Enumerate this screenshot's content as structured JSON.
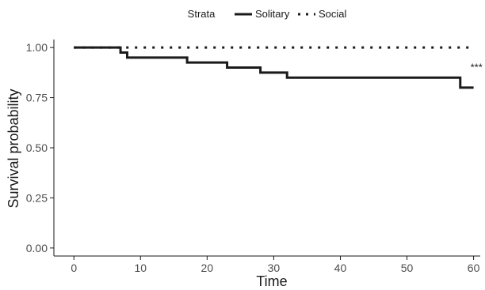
{
  "chart_data": {
    "type": "line",
    "subtype": "kaplan-meier step",
    "title": "",
    "xlabel": "Time",
    "ylabel": "Survival probability",
    "xlim": [
      -3,
      61
    ],
    "ylim": [
      -0.04,
      1.04
    ],
    "x_ticks": [
      0,
      10,
      20,
      30,
      40,
      50,
      60
    ],
    "y_ticks": [
      0.0,
      0.25,
      0.5,
      0.75,
      1.0
    ],
    "y_tick_labels": [
      "0.00",
      "0.25",
      "0.50",
      "0.75",
      "1.00"
    ],
    "grid": false,
    "legend": {
      "title": "Strata",
      "placement": "top",
      "entries": [
        "Solitary",
        "Social"
      ]
    },
    "series": [
      {
        "name": "Solitary",
        "style": "solid",
        "color": "#1a1a1a",
        "x": [
          0,
          7,
          8,
          17,
          23,
          28,
          32,
          58,
          60
        ],
        "y": [
          1.0,
          0.975,
          0.95,
          0.925,
          0.9,
          0.875,
          0.85,
          0.8,
          0.8
        ]
      },
      {
        "name": "Social",
        "style": "dotted",
        "color": "#1a1a1a",
        "x": [
          0,
          60
        ],
        "y": [
          1.0,
          1.0
        ]
      }
    ],
    "annotations": [
      {
        "text": "***",
        "x": 60,
        "y": 0.9
      }
    ]
  }
}
